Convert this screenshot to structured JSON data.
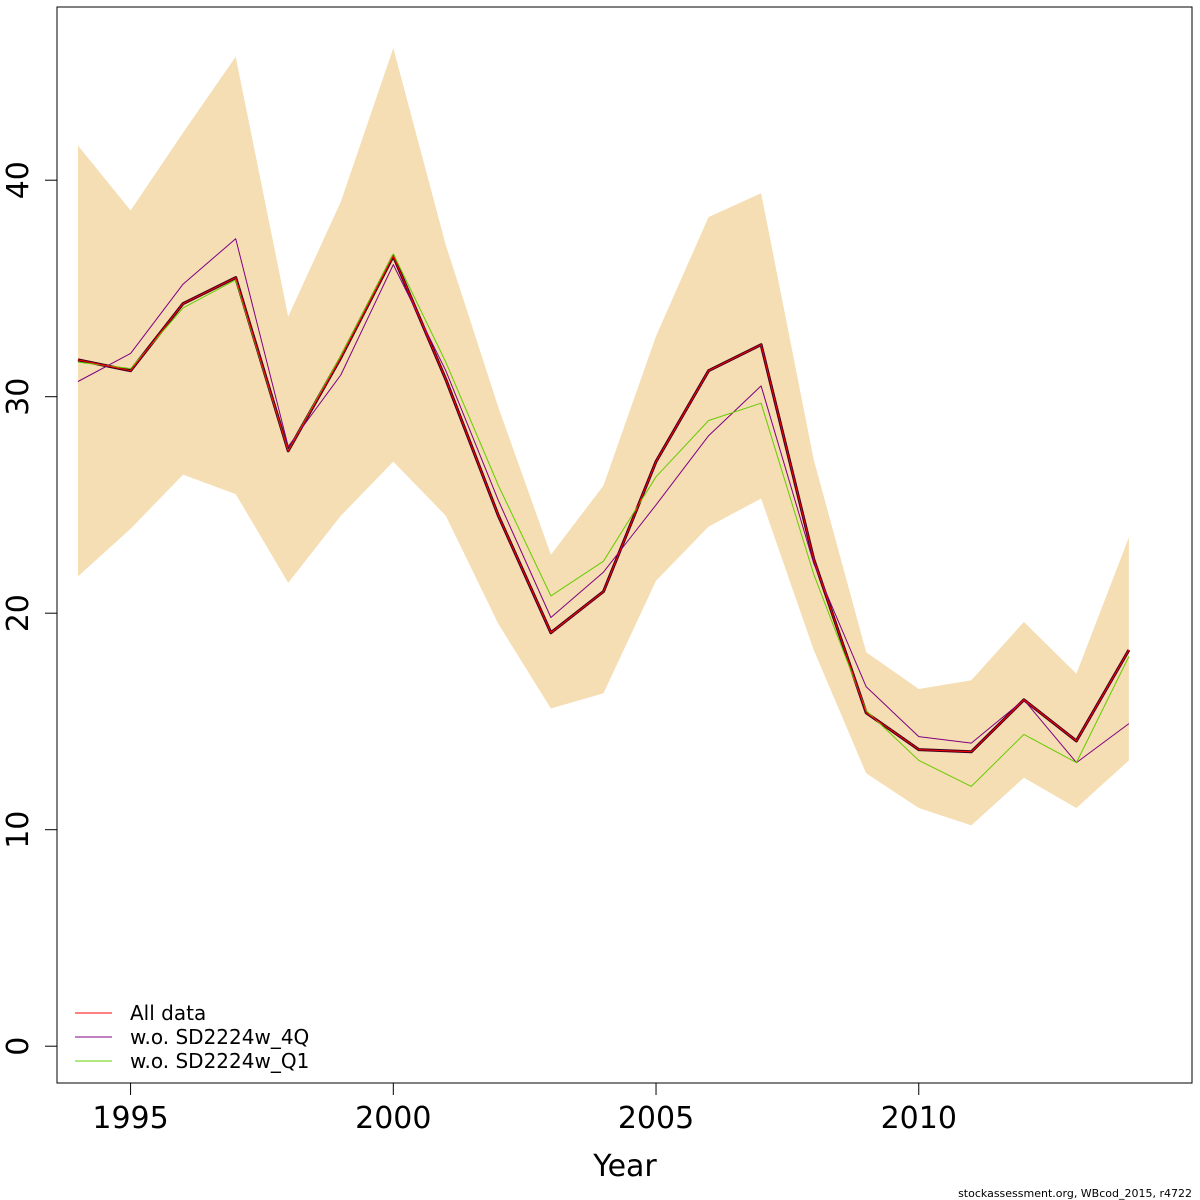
{
  "chart_data": {
    "type": "line",
    "xlabel": "Year",
    "ylabel": "",
    "xlim": [
      1993.6,
      2015.2
    ],
    "ylim": [
      -1.7,
      48.0
    ],
    "x_ticks": [
      1995,
      2000,
      2005,
      2010
    ],
    "y_ticks": [
      0,
      10,
      20,
      30,
      40
    ],
    "grid": false,
    "legend_position": "bottom-left",
    "x": [
      1994,
      1995,
      1996,
      1997,
      1998,
      1999,
      2000,
      2001,
      2002,
      2003,
      2004,
      2005,
      2006,
      2007,
      2008,
      2009,
      2010,
      2011,
      2012,
      2013,
      2014
    ],
    "confidence_band": {
      "color": "#F5DEB3",
      "upper": [
        41.6,
        38.6,
        42.2,
        45.7,
        33.7,
        39.0,
        46.1,
        37.0,
        29.5,
        22.7,
        25.9,
        32.8,
        38.3,
        39.4,
        27.1,
        18.2,
        16.5,
        16.9,
        19.6,
        17.2,
        23.5
      ],
      "lower": [
        21.7,
        23.9,
        26.4,
        25.5,
        21.4,
        24.5,
        27.0,
        24.5,
        19.5,
        15.6,
        16.3,
        21.5,
        24.0,
        25.3,
        18.3,
        12.6,
        11.0,
        10.2,
        12.4,
        11.0,
        13.2
      ]
    },
    "series": [
      {
        "name": "All data",
        "color": "#FF0000",
        "values": [
          31.7,
          31.2,
          34.3,
          35.5,
          27.5,
          31.8,
          36.5,
          30.8,
          24.5,
          19.1,
          21.0,
          27.0,
          31.2,
          32.4,
          22.5,
          15.4,
          13.7,
          13.6,
          16.0,
          14.1,
          18.3
        ]
      },
      {
        "name": "w.o. SD2224w_4Q",
        "color": "#800080",
        "values": [
          30.7,
          32.0,
          35.2,
          37.3,
          27.7,
          31.0,
          36.1,
          31.2,
          25.2,
          19.8,
          21.9,
          25.0,
          28.2,
          30.5,
          22.3,
          16.6,
          14.3,
          14.0,
          16.0,
          13.1,
          14.9
        ]
      },
      {
        "name": "w.o. SD2224w_Q1",
        "color": "#66CC00",
        "values": [
          31.6,
          31.3,
          34.1,
          35.4,
          27.5,
          31.9,
          36.6,
          31.6,
          25.9,
          20.8,
          22.4,
          26.3,
          28.9,
          29.7,
          21.8,
          15.5,
          13.2,
          12.0,
          14.4,
          13.1,
          18.0
        ]
      }
    ],
    "overlay_line_color": "#3D0020"
  },
  "footer": {
    "credit": "stockassessment.org, WBcod_2015, r4722"
  }
}
